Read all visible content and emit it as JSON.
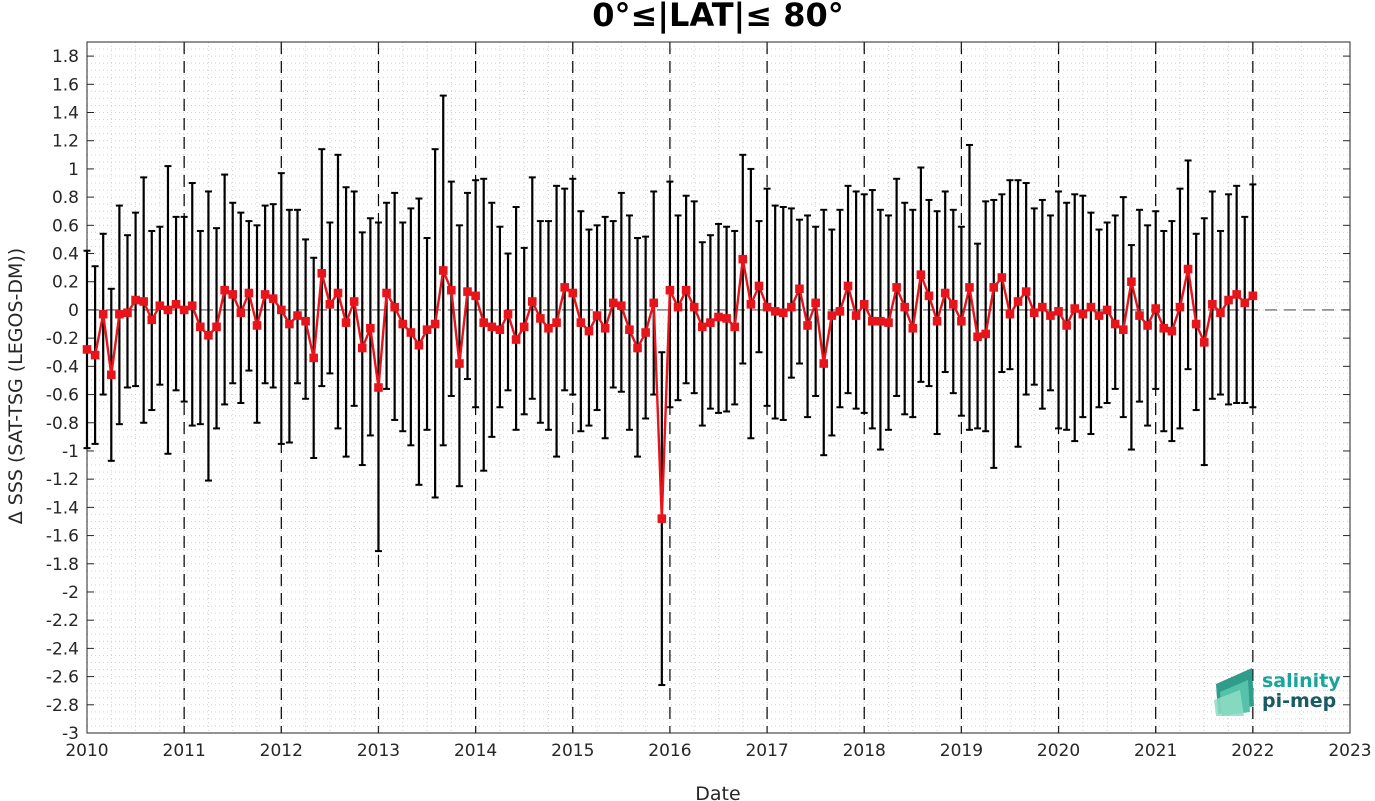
{
  "chart_data": {
    "type": "line",
    "title": "0°≤|LAT|≤ 80°",
    "xlabel": "Date",
    "ylabel": "Δ SSS (SAT-TSG (LEGOS-DM))",
    "xlim": [
      2010,
      2023
    ],
    "ylim": [
      -3,
      1.9
    ],
    "x_ticks": [
      "2010",
      "2011",
      "2012",
      "2013",
      "2014",
      "2015",
      "2016",
      "2017",
      "2018",
      "2019",
      "2020",
      "2021",
      "2022",
      "2023"
    ],
    "y_ticks": [
      "1.8",
      "1.6",
      "1.4",
      "1.2",
      "1",
      "0.8",
      "0.6",
      "0.4",
      "0.2",
      "0",
      "-0.2",
      "-0.4",
      "-0.6",
      "-0.8",
      "-1",
      "-1.2",
      "-1.4",
      "-1.6",
      "-1.8",
      "-2",
      "-2.2",
      "-2.4",
      "-2.6",
      "-2.8",
      "-3"
    ],
    "y_tick_values": [
      1.8,
      1.6,
      1.4,
      1.2,
      1,
      0.8,
      0.6,
      0.4,
      0.2,
      0,
      -0.2,
      -0.4,
      -0.6,
      -0.8,
      -1,
      -1.2,
      -1.4,
      -1.6,
      -1.8,
      -2,
      -2.2,
      -2.4,
      -2.6,
      -2.8,
      -3
    ],
    "grid": "minor dotted",
    "year_separators": "dashed vertical lines at each year",
    "zero_reference_line": "dashed horizontal line at 0",
    "series": [
      {
        "color": "#e8141b",
        "marker": "square",
        "errorbar_color": "#000000",
        "start": "2010-01",
        "step": "1 month",
        "values": [
          -0.28,
          -0.32,
          -0.03,
          -0.46,
          -0.03,
          -0.02,
          0.07,
          0.06,
          -0.07,
          0.03,
          0.0,
          0.04,
          0.0,
          0.03,
          -0.12,
          -0.18,
          -0.12,
          0.14,
          0.11,
          -0.02,
          0.12,
          -0.11,
          0.11,
          0.08,
          0.0,
          -0.1,
          -0.04,
          -0.08,
          -0.34,
          0.26,
          0.04,
          0.12,
          -0.09,
          0.06,
          -0.27,
          -0.13,
          -0.55,
          0.12,
          0.02,
          -0.1,
          -0.16,
          -0.25,
          -0.14,
          -0.1,
          0.28,
          0.14,
          -0.38,
          0.13,
          0.1,
          -0.09,
          -0.12,
          -0.14,
          -0.03,
          -0.21,
          -0.12,
          0.06,
          -0.06,
          -0.13,
          -0.09,
          0.16,
          0.12,
          -0.09,
          -0.15,
          -0.04,
          -0.13,
          0.05,
          0.03,
          -0.14,
          -0.27,
          -0.16,
          0.05,
          -1.48,
          0.14,
          0.02,
          0.14,
          0.02,
          -0.12,
          -0.09,
          -0.05,
          -0.06,
          -0.12,
          0.36,
          0.04,
          0.17,
          0.02,
          -0.01,
          -0.02,
          0.02,
          0.15,
          -0.11,
          0.05,
          -0.38,
          -0.04,
          -0.01,
          0.17,
          -0.04,
          0.04,
          -0.08,
          -0.08,
          -0.09,
          0.16,
          0.02,
          -0.13,
          0.25,
          0.1,
          -0.08,
          0.12,
          0.04,
          -0.08,
          0.16,
          -0.19,
          -0.17,
          0.16,
          0.23,
          -0.03,
          0.06,
          0.13,
          -0.02,
          0.02,
          -0.04,
          -0.01,
          -0.11,
          0.01,
          -0.03,
          0.02,
          -0.04,
          0.0,
          -0.1,
          -0.14,
          0.2,
          -0.04,
          -0.11,
          0.01,
          -0.13,
          -0.15,
          0.02,
          0.29,
          -0.1,
          -0.23,
          0.04,
          -0.02,
          0.07,
          0.11,
          0.05,
          0.1
        ],
        "err_high": [
          0.42,
          0.31,
          0.54,
          0.15,
          0.74,
          0.53,
          0.69,
          0.94,
          0.56,
          0.59,
          1.02,
          0.66,
          0.66,
          0.9,
          0.56,
          0.84,
          0.58,
          0.96,
          0.76,
          0.69,
          0.63,
          0.6,
          0.74,
          0.75,
          0.97,
          0.71,
          0.71,
          0.5,
          0.37,
          1.14,
          0.62,
          1.1,
          0.87,
          0.84,
          0.55,
          0.65,
          0.62,
          0.76,
          0.83,
          0.62,
          0.72,
          0.79,
          0.51,
          1.14,
          1.52,
          0.91,
          0.6,
          0.83,
          0.92,
          0.93,
          0.76,
          0.59,
          0.4,
          0.73,
          0.44,
          0.94,
          0.63,
          0.63,
          0.88,
          0.86,
          0.93,
          0.7,
          0.57,
          0.6,
          0.66,
          0.63,
          0.83,
          0.67,
          0.51,
          0.52,
          0.84,
          -0.3,
          0.91,
          0.67,
          0.81,
          0.77,
          0.48,
          0.53,
          0.61,
          0.59,
          0.56,
          1.1,
          1.0,
          0.63,
          0.86,
          0.74,
          0.73,
          0.72,
          0.64,
          0.67,
          0.59,
          0.71,
          0.57,
          0.71,
          0.88,
          0.84,
          0.82,
          0.85,
          0.71,
          0.67,
          0.93,
          0.76,
          0.71,
          1.01,
          0.78,
          0.7,
          0.84,
          0.71,
          0.59,
          1.17,
          0.47,
          0.77,
          0.78,
          0.82,
          0.92,
          0.92,
          0.9,
          0.72,
          0.78,
          0.67,
          0.84,
          0.76,
          0.82,
          0.81,
          0.69,
          0.57,
          0.62,
          0.67,
          0.8,
          0.46,
          0.71,
          0.6,
          0.7,
          0.56,
          0.63,
          0.86,
          1.06,
          0.54,
          0.65,
          0.84,
          0.56,
          0.82,
          0.88,
          0.66,
          0.89
        ],
        "err_low": [
          -0.98,
          -0.95,
          -0.6,
          -1.07,
          -0.81,
          -0.55,
          -0.54,
          -0.8,
          -0.71,
          -0.53,
          -1.02,
          -0.57,
          -0.65,
          -0.82,
          -0.81,
          -1.21,
          -0.84,
          -0.67,
          -0.52,
          -0.66,
          -0.43,
          -0.8,
          -0.52,
          -0.55,
          -0.95,
          -0.94,
          -0.52,
          -0.63,
          -1.05,
          -0.54,
          -0.45,
          -0.84,
          -1.04,
          -0.68,
          -1.1,
          -0.89,
          -1.71,
          -0.56,
          -0.78,
          -0.86,
          -0.96,
          -1.24,
          -0.85,
          -1.33,
          -0.96,
          -0.61,
          -1.25,
          -0.49,
          -0.69,
          -1.14,
          -0.9,
          -0.69,
          -0.57,
          -0.85,
          -0.74,
          -0.63,
          -0.8,
          -0.85,
          -1.04,
          -0.57,
          -0.6,
          -0.86,
          -0.82,
          -0.71,
          -0.91,
          -0.55,
          -0.58,
          -0.85,
          -1.04,
          -0.77,
          -0.6,
          -2.66,
          -0.69,
          -0.64,
          -0.52,
          -0.59,
          -0.82,
          -0.7,
          -0.73,
          -0.72,
          -0.67,
          -0.38,
          -0.91,
          -0.3,
          -0.68,
          -0.77,
          -0.78,
          -0.48,
          -0.38,
          -0.76,
          -0.61,
          -1.03,
          -0.89,
          -0.69,
          -0.59,
          -0.7,
          -0.73,
          -0.84,
          -0.99,
          -0.85,
          -0.61,
          -0.74,
          -0.76,
          -0.51,
          -0.54,
          -0.88,
          -0.44,
          -0.59,
          -0.75,
          -0.85,
          -0.84,
          -0.86,
          -1.12,
          -0.44,
          -0.42,
          -0.97,
          -0.6,
          -0.53,
          -0.7,
          -0.57,
          -0.84,
          -0.85,
          -0.93,
          -0.76,
          -0.88,
          -0.69,
          -0.66,
          -0.56,
          -0.76,
          -0.99,
          -0.65,
          -0.82,
          -0.56,
          -0.86,
          -0.93,
          -0.84,
          -0.42,
          -0.71,
          -1.1,
          -0.63,
          -0.6,
          -0.67,
          -0.66,
          -0.66,
          -0.69
        ]
      }
    ]
  },
  "logo": {
    "line1": "salinity",
    "line2": "pi-mep",
    "color1": "#1aa59a",
    "color2": "#1a5a62"
  }
}
